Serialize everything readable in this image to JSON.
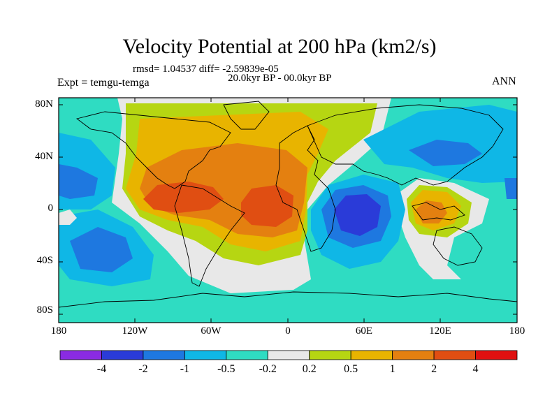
{
  "title": "Velocity Potential at 200 hPa (km2/s)",
  "stats": "rmsd= 1.04537 diff= -2.59839e-05",
  "period": "20.0kyr BP - 00.0kyr BP",
  "expt": "Expt = temgu-temga",
  "season": "ANN",
  "axes": {
    "y_ticks": [
      "80N",
      "40N",
      "0",
      "40S",
      "80S"
    ],
    "x_ticks": [
      "180",
      "120W",
      "60W",
      "0",
      "60E",
      "120E",
      "180"
    ]
  },
  "colorbar": {
    "colors": [
      "#8a2be2",
      "#2a3bd8",
      "#1e78e0",
      "#0fb7e6",
      "#2fdcc2",
      "#e8e8e8",
      "#b6d612",
      "#e8b400",
      "#e48010",
      "#e04e12",
      "#e01010"
    ],
    "labels": [
      "-4",
      "-2",
      "-1",
      "-0.5",
      "-0.2",
      "0.2",
      "0.5",
      "1",
      "2",
      "4"
    ]
  }
}
